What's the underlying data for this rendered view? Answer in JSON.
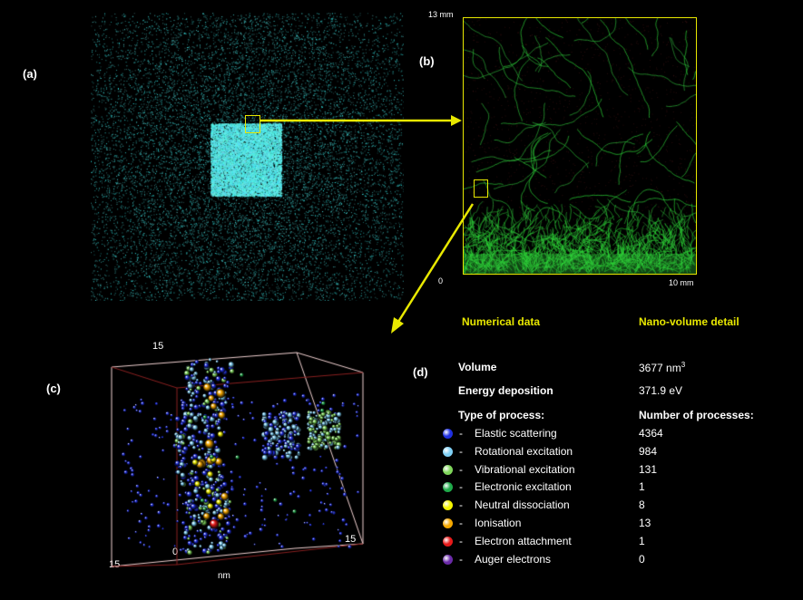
{
  "panels": {
    "a": {
      "label": "(a)"
    },
    "b": {
      "label": "(b)",
      "axis_top": "13 mm",
      "axis_origin": "0",
      "axis_right": "10 mm"
    },
    "c": {
      "label": "(c)",
      "axis_top": "15",
      "axis_origin": "0",
      "axis_left": "15",
      "axis_right": "15",
      "axis_unit": "nm"
    },
    "d": {
      "label": "(d)"
    }
  },
  "table": {
    "header_left": "Numerical data",
    "header_right": "Nano-volume detail",
    "volume_label": "Volume",
    "volume_value": "3677 nm",
    "volume_exp": "3",
    "energy_label": "Energy deposition",
    "energy_value": "371.9 eV",
    "process_header": "Type of process:",
    "count_header": "Number of processes:",
    "dash": "-",
    "processes": [
      {
        "name": "Elastic scattering",
        "count": "4364",
        "color": "#1f2fe0"
      },
      {
        "name": "Rotational excitation",
        "count": "984",
        "color": "#7fd0f5"
      },
      {
        "name": "Vibrational excitation",
        "count": "131",
        "color": "#7fd65a"
      },
      {
        "name": "Electronic excitation",
        "count": "1",
        "color": "#1faa4a"
      },
      {
        "name": "Neutral dissociation",
        "count": "8",
        "color": "#f5f500"
      },
      {
        "name": "Ionisation",
        "count": "13",
        "color": "#f5a800"
      },
      {
        "name": "Electron attachment",
        "count": "1",
        "color": "#e81a1a"
      },
      {
        "name": "Auger electrons",
        "count": "0",
        "color": "#6a2aa8"
      }
    ]
  },
  "colors": {
    "accent": "#e8e800",
    "cyan": "#3fe6e6",
    "track_green": "#2ecc3a",
    "box_edge": "#f0d0d0"
  }
}
